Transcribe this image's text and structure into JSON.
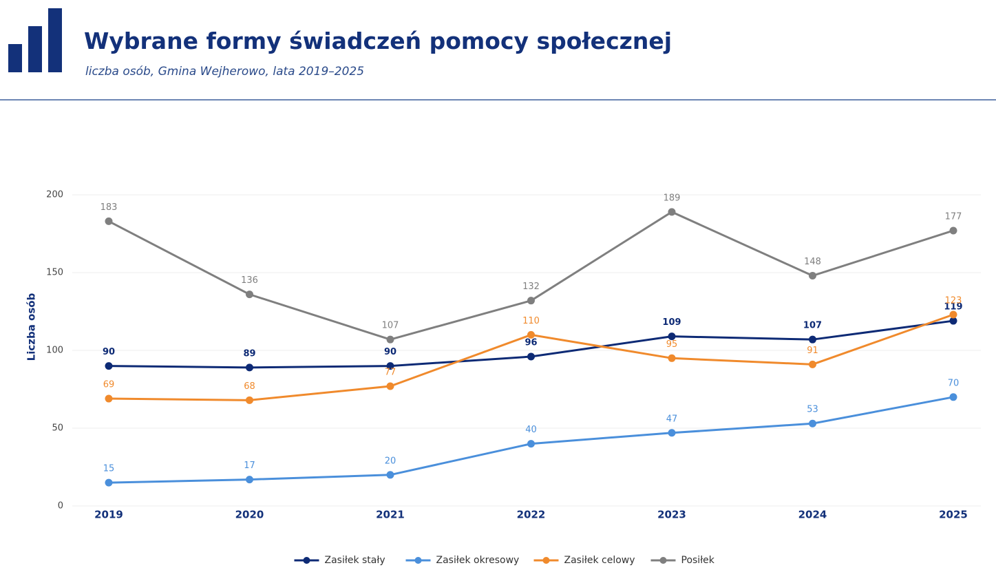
{
  "header": {
    "title": "Wybrane formy świadczeń pomocy społecznej",
    "subtitle": "liczba osób, Gmina Wejherowo, lata 2019–2025"
  },
  "chart_data": {
    "type": "line",
    "y_label": "Liczba osób",
    "categories": [
      "2019",
      "2020",
      "2021",
      "2022",
      "2023",
      "2024",
      "2025"
    ],
    "series": [
      {
        "name": "Zasiłek stały",
        "color": "#0d2a75",
        "values": [
          90,
          89,
          90,
          96,
          109,
          107,
          119
        ]
      },
      {
        "name": "Zasiłek okresowy",
        "color": "#4a8fdb",
        "values": [
          15,
          17,
          20,
          40,
          47,
          53,
          70
        ]
      },
      {
        "name": "Zasiłek celowy",
        "color": "#f08a2c",
        "values": [
          69,
          68,
          77,
          110,
          95,
          91,
          123
        ]
      },
      {
        "name": "Posiłek",
        "color": "#7f7f7f",
        "values": [
          183,
          136,
          107,
          132,
          189,
          148,
          177
        ]
      }
    ],
    "ylim": [
      0,
      200
    ],
    "yticks": [
      0,
      50,
      100,
      150,
      200
    ],
    "grid": true,
    "legend": "bottom"
  }
}
